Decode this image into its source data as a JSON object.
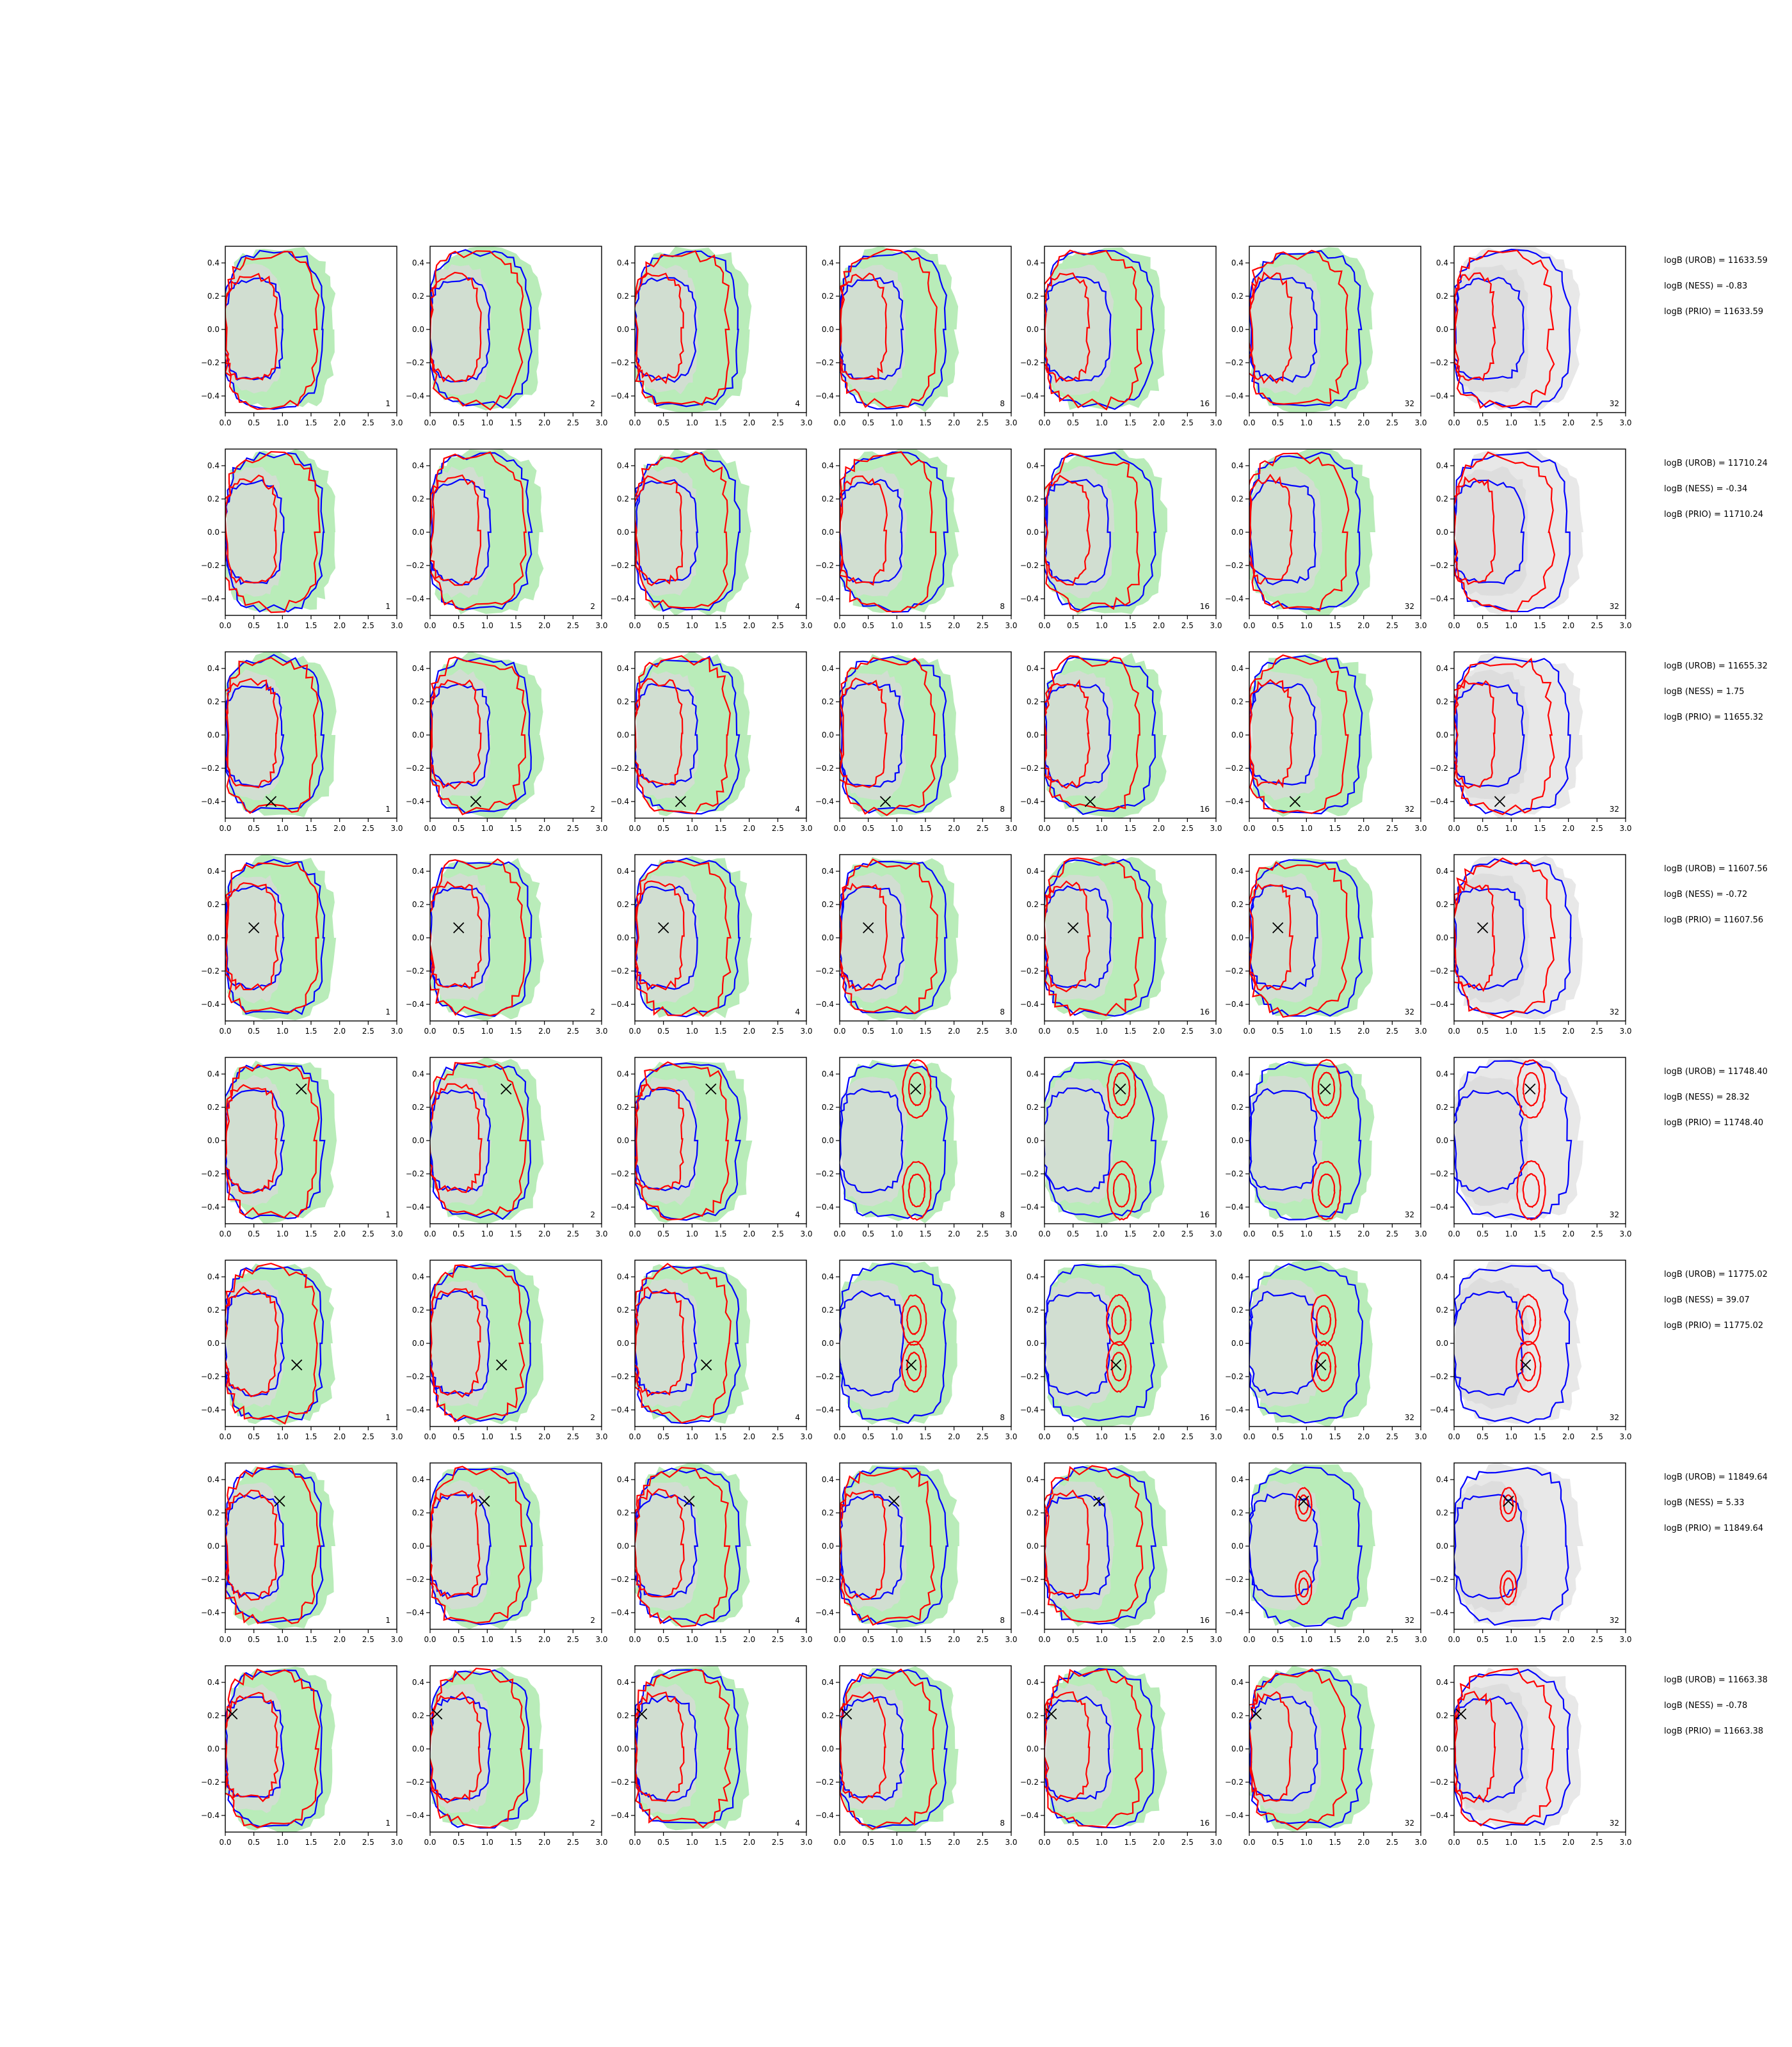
{
  "chart_data": {
    "type": "contour",
    "layout": {
      "rows": 8,
      "cols": 7
    },
    "xlim": [
      0.0,
      3.0
    ],
    "ylim": [
      -0.5,
      0.5
    ],
    "xticks": [
      "0.0",
      "0.5",
      "1.0",
      "1.5",
      "2.0",
      "2.5",
      "3.0"
    ],
    "yticks": [
      "0.4",
      "0.2",
      "0.0",
      "−0.2",
      "−0.4"
    ],
    "ytick_values": [
      0.4,
      0.2,
      0.0,
      -0.2,
      -0.4
    ],
    "xtick_values": [
      0.0,
      0.5,
      1.0,
      1.5,
      2.0,
      2.5,
      3.0
    ],
    "column_labels": [
      "1",
      "2",
      "4",
      "8",
      "16",
      "32",
      "32"
    ],
    "colors": {
      "blue": "#0000ff",
      "red": "#ff0000",
      "green_fill": "#b9ecb9",
      "grey_fill": "#d9d9d9",
      "last_col_fill": "#e8e8e8"
    },
    "rows": [
      {
        "marker": null,
        "annotations": [
          "logB (UROB) = 11633.59",
          "logB (NESS) = -0.83",
          "logB (PRIO) = 11633.59"
        ]
      },
      {
        "marker": null,
        "annotations": [
          "logB (UROB) = 11710.24",
          "logB (NESS) = -0.34",
          "logB (PRIO) = 11710.24"
        ]
      },
      {
        "marker": [
          0.8,
          -0.4
        ],
        "annotations": [
          "logB (UROB) = 11655.32",
          "logB (NESS) = 1.75",
          "logB (PRIO) = 11655.32"
        ]
      },
      {
        "marker": [
          0.5,
          0.06
        ],
        "annotations": [
          "logB (UROB) = 11607.56",
          "logB (NESS) = -0.72",
          "logB (PRIO) = 11607.56"
        ]
      },
      {
        "marker": [
          1.33,
          0.31
        ],
        "annotations": [
          "logB (UROB) = 11748.40",
          "logB (NESS) = 28.32",
          "logB (PRIO) = 11748.40"
        ]
      },
      {
        "marker": [
          1.25,
          -0.13
        ],
        "annotations": [
          "logB (UROB) = 11775.02",
          "logB (NESS) = 39.07",
          "logB (PRIO) = 11775.02"
        ]
      },
      {
        "marker": [
          0.95,
          0.27
        ],
        "annotations": [
          "logB (UROB) = 11849.64",
          "logB (NESS) = 5.33",
          "logB (PRIO) = 11849.64"
        ]
      },
      {
        "marker": [
          0.12,
          0.21
        ],
        "annotations": [
          "logB (UROB) = 11663.38",
          "logB (NESS) = -0.78",
          "logB (PRIO) = 11663.38"
        ]
      }
    ]
  }
}
